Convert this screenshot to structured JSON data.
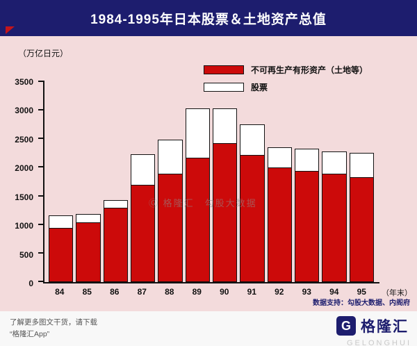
{
  "header": {
    "title": "1984-1995年日本股票＆土地资产总值"
  },
  "chart": {
    "y_axis_label": "（万亿日元）",
    "x_axis_suffix": "（年末）"
  },
  "chart_data": {
    "type": "bar",
    "stacked": true,
    "title": "1984-1995年日本股票＆土地资产总值",
    "ylabel": "万亿日元",
    "xlabel": "年末",
    "ylim": [
      0,
      3500
    ],
    "yticks": [
      0,
      500,
      1000,
      1500,
      2000,
      2500,
      3000,
      3500
    ],
    "grid": false,
    "legend_position": "top-center",
    "categories": [
      "84",
      "85",
      "86",
      "87",
      "88",
      "89",
      "90",
      "91",
      "92",
      "93",
      "94",
      "95"
    ],
    "series": [
      {
        "name": "不可再生产有形资产（土地等）",
        "color": "#cc0a0a",
        "values": [
          950,
          1040,
          1300,
          1700,
          1900,
          2175,
          2425,
          2225,
          2000,
          1950,
          1900,
          1840
        ]
      },
      {
        "name": "股票",
        "color": "#ffffff",
        "values": [
          225,
          160,
          150,
          550,
          600,
          875,
          625,
          550,
          375,
          400,
          400,
          435
        ]
      }
    ]
  },
  "legend": {
    "items": [
      {
        "label": "不可再生产有形资产（土地等）",
        "color": "#cc0a0a"
      },
      {
        "label": "股票",
        "color": "#ffffff"
      }
    ]
  },
  "watermark": {
    "text": "Ⓖ 格隆汇　勾股大数据"
  },
  "footer": {
    "data_support": "数据支持：勾股大数据、内阁府",
    "promo_line1": "了解更多图文干货，请下载",
    "promo_line2": "“格隆汇App”",
    "logo_letter": "G",
    "brand_name": "格隆汇",
    "brand_sub": "GELONGHUI"
  },
  "colors": {
    "header_bg": "#1d1d6e",
    "chart_bg": "#f3dbdc",
    "bar_red": "#cc0a0a",
    "bar_white": "#ffffff",
    "axis": "#111111"
  }
}
